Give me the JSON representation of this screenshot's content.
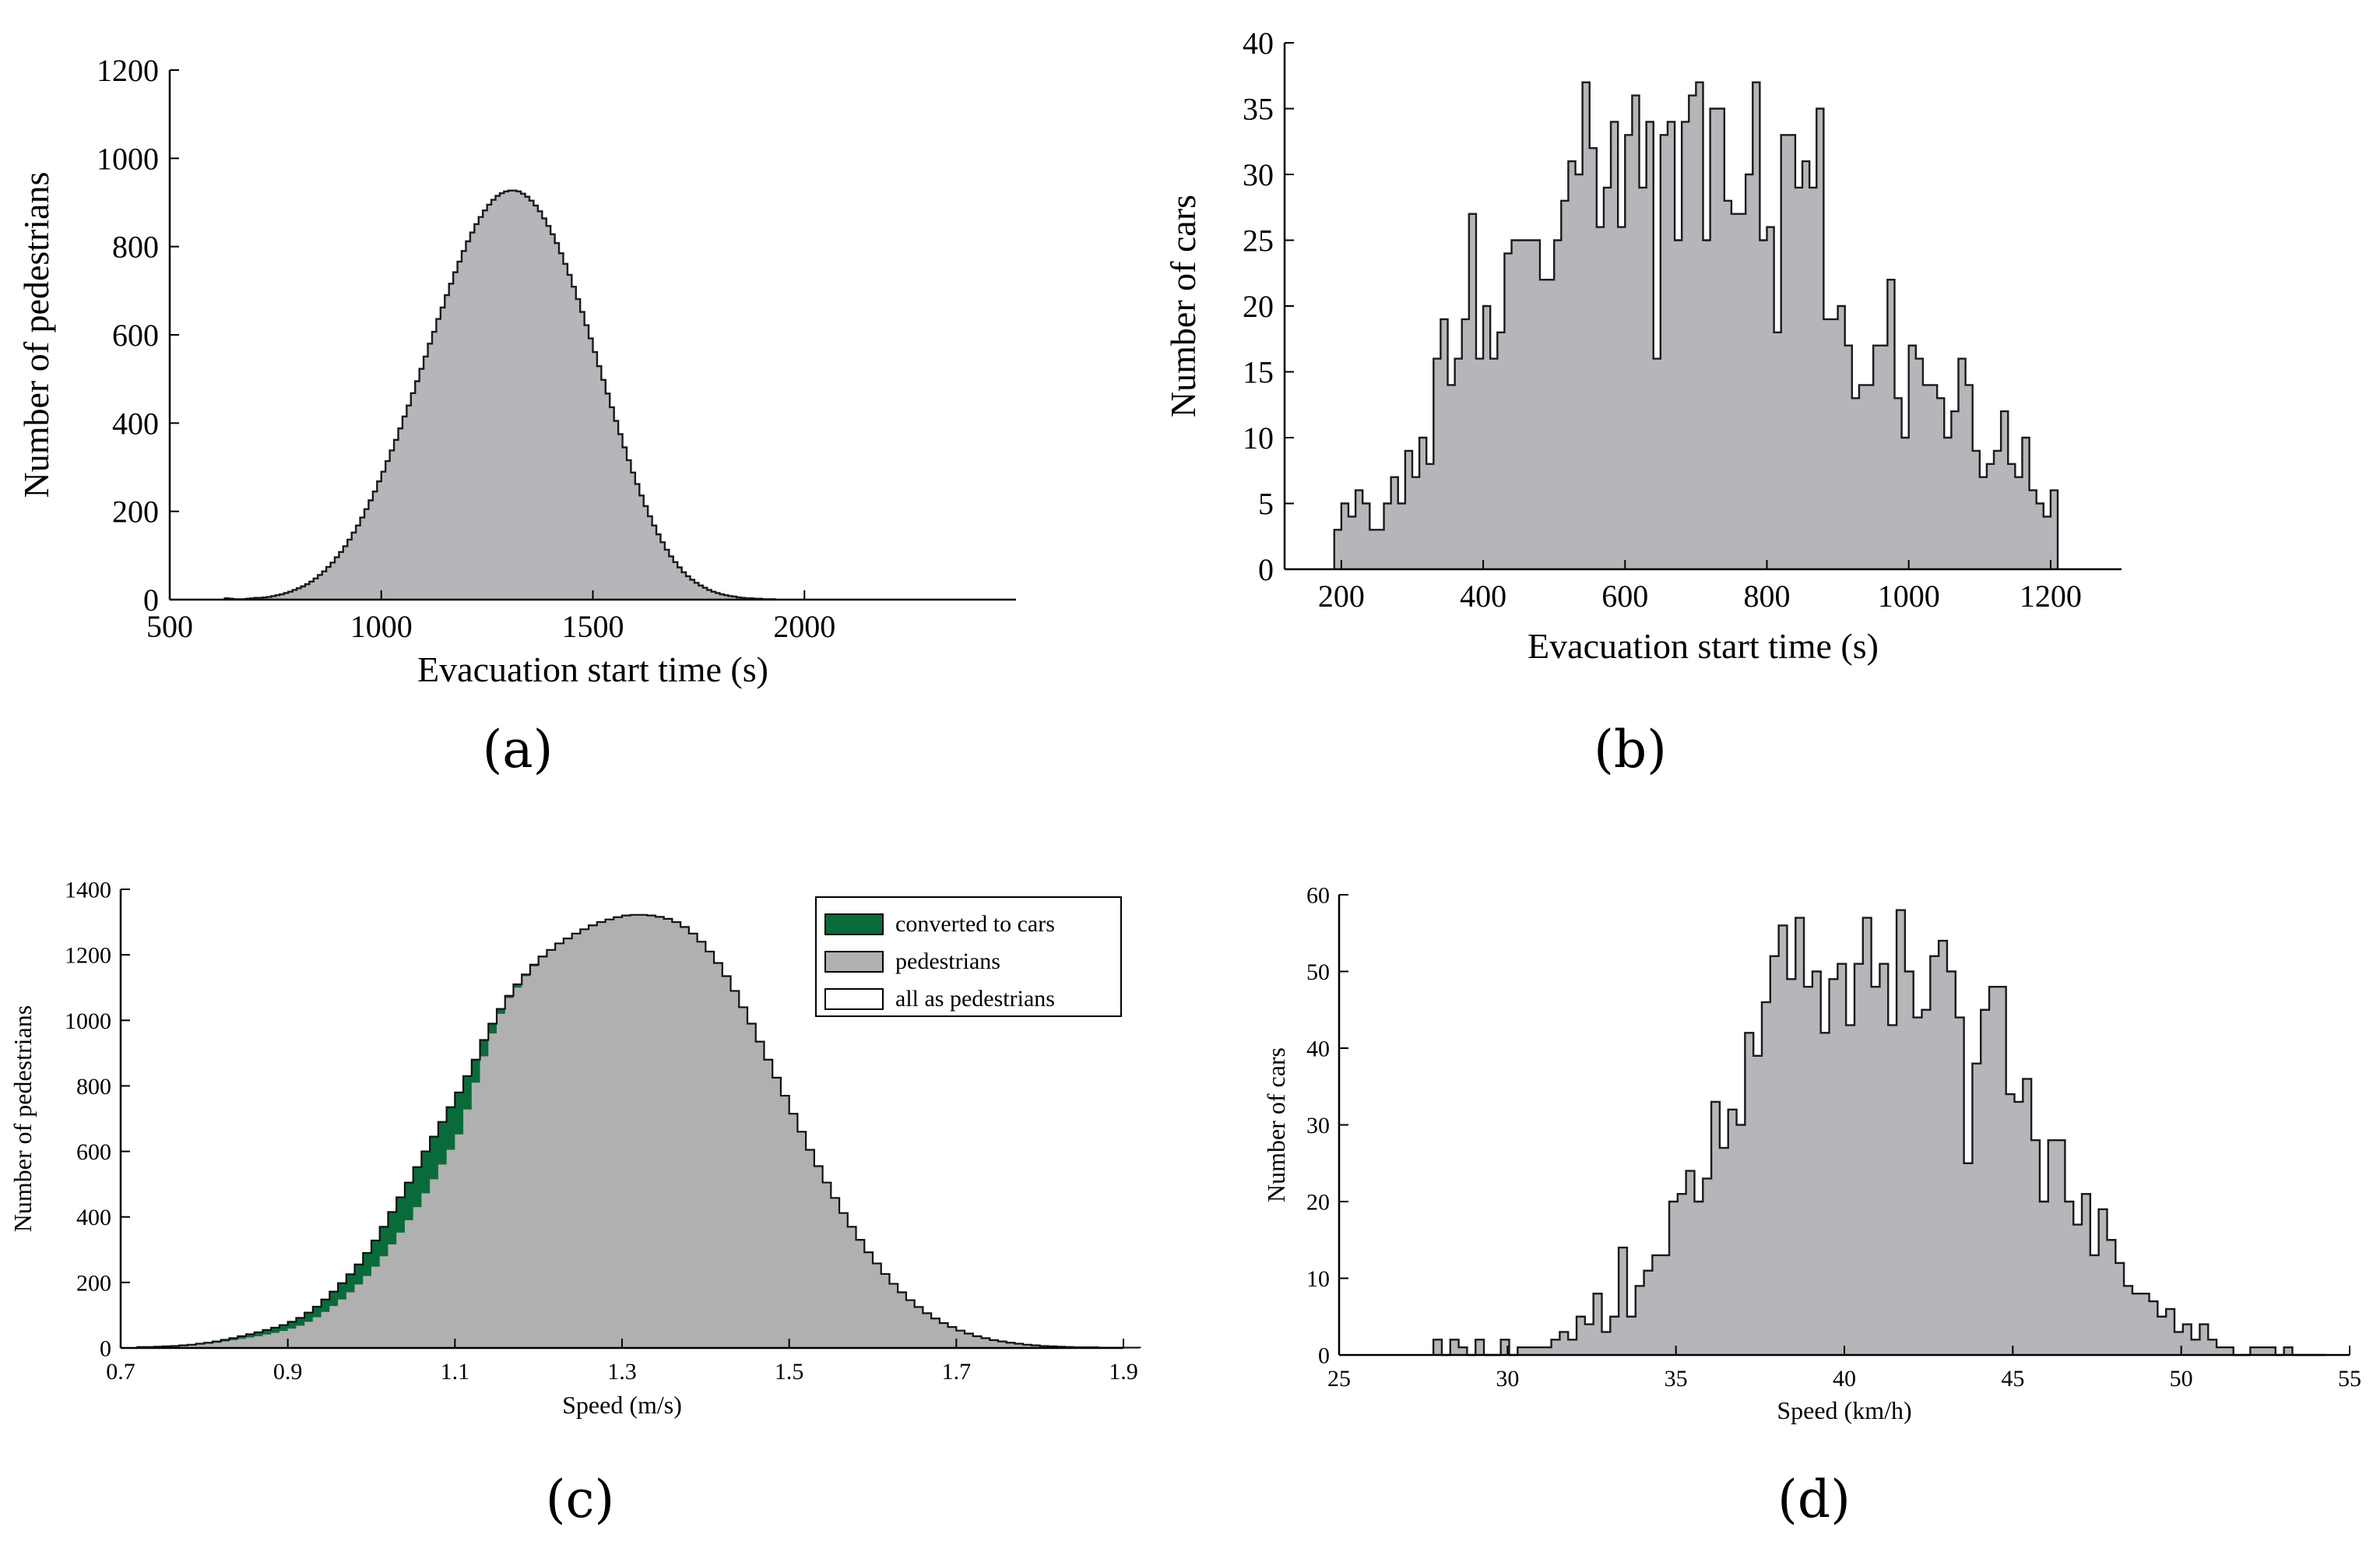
{
  "chart_data": [
    {
      "panel": "(a)",
      "type": "bar",
      "subtype": "histogram",
      "title": "",
      "xlabel": "Evacuation start time (s)",
      "ylabel": "Number of pedestrians",
      "xlim": [
        500,
        2500
      ],
      "ylim": [
        0,
        1200
      ],
      "xticks": [
        500,
        1000,
        1500,
        2000
      ],
      "yticks": [
        0,
        200,
        400,
        600,
        800,
        1000,
        1200
      ],
      "bin_start": 630,
      "bin_width": 10,
      "values": [
        3,
        2,
        1,
        1,
        1,
        2,
        3,
        4,
        4,
        5,
        6,
        8,
        10,
        12,
        15,
        18,
        22,
        26,
        30,
        35,
        41,
        48,
        56,
        64,
        74,
        84,
        96,
        108,
        121,
        136,
        152,
        168,
        186,
        205,
        225,
        245,
        268,
        290,
        314,
        338,
        362,
        388,
        415,
        440,
        468,
        495,
        523,
        551,
        580,
        607,
        636,
        662,
        690,
        716,
        742,
        766,
        790,
        812,
        832,
        851,
        867,
        882,
        895,
        906,
        915,
        921,
        925,
        927,
        927,
        925,
        920,
        913,
        904,
        893,
        880,
        864,
        847,
        828,
        808,
        785,
        761,
        736,
        709,
        681,
        652,
        622,
        592,
        561,
        529,
        498,
        467,
        436,
        405,
        375,
        345,
        316,
        288,
        262,
        236,
        212,
        189,
        168,
        148,
        130,
        113,
        98,
        85,
        73,
        62,
        53,
        45,
        38,
        32,
        27,
        22,
        18,
        15,
        12,
        10,
        8,
        7,
        5,
        4,
        3,
        3,
        2,
        2,
        1,
        1,
        1
      ]
    },
    {
      "panel": "(b)",
      "type": "bar",
      "subtype": "histogram",
      "title": "",
      "xlabel": "Evacuation start time (s)",
      "ylabel": "Number of cars",
      "xlim": [
        120,
        1300
      ],
      "ylim": [
        0,
        40
      ],
      "xticks": [
        200,
        400,
        600,
        800,
        1000,
        1200
      ],
      "yticks": [
        0,
        5,
        10,
        15,
        20,
        25,
        30,
        35,
        40
      ],
      "bin_start": 190,
      "bin_width": 10,
      "values": [
        3,
        5,
        4,
        6,
        5,
        3,
        3,
        5,
        7,
        5,
        9,
        7,
        10,
        8,
        16,
        19,
        14,
        16,
        19,
        27,
        16,
        20,
        16,
        18,
        24,
        25,
        25,
        25,
        25,
        22,
        22,
        25,
        28,
        31,
        30,
        37,
        32,
        26,
        29,
        34,
        26,
        33,
        36,
        29,
        34,
        16,
        33,
        34,
        25,
        34,
        36,
        37,
        25,
        35,
        35,
        28,
        27,
        27,
        30,
        37,
        25,
        26,
        18,
        33,
        33,
        29,
        31,
        29,
        35,
        19,
        19,
        20,
        17,
        13,
        14,
        14,
        17,
        17,
        22,
        13,
        10,
        17,
        16,
        14,
        14,
        13,
        10,
        12,
        16,
        14,
        9,
        7,
        8,
        9,
        12,
        8,
        7,
        10,
        6,
        5,
        4,
        6
      ]
    },
    {
      "panel": "(c)",
      "type": "area",
      "subtype": "step histogram",
      "title": "",
      "xlabel": "Speed (m/s)",
      "ylabel": "Number of pedestrians",
      "xlim": [
        0.7,
        1.9
      ],
      "ylim": [
        0,
        1400
      ],
      "xticks": [
        "0.7",
        "0.9",
        "1.1",
        "1.3",
        "1.5",
        "1.7",
        "1.9"
      ],
      "yticks": [
        0,
        200,
        400,
        600,
        800,
        1000,
        1200,
        1400
      ],
      "bin_start": 0.72,
      "bin_width": 0.01,
      "series": [
        {
          "name": "all as pedestrians",
          "values": [
            3,
            3,
            4,
            5,
            6,
            8,
            10,
            13,
            16,
            20,
            25,
            30,
            36,
            42,
            48,
            55,
            62,
            70,
            80,
            92,
            108,
            126,
            148,
            172,
            198,
            225,
            255,
            290,
            328,
            370,
            415,
            460,
            505,
            552,
            600,
            645,
            690,
            735,
            780,
            830,
            880,
            940,
            990,
            1035,
            1075,
            1110,
            1140,
            1170,
            1195,
            1215,
            1235,
            1250,
            1265,
            1278,
            1290,
            1300,
            1308,
            1315,
            1320,
            1322,
            1322,
            1320,
            1316,
            1310,
            1300,
            1285,
            1265,
            1240,
            1210,
            1175,
            1135,
            1090,
            1040,
            990,
            935,
            880,
            825,
            770,
            715,
            660,
            605,
            555,
            505,
            458,
            412,
            370,
            330,
            292,
            258,
            226,
            196,
            170,
            146,
            125,
            106,
            90,
            76,
            64,
            53,
            44,
            36,
            30,
            24,
            20,
            16,
            13,
            10,
            8,
            6,
            5,
            4,
            3,
            2,
            2,
            2,
            1,
            1,
            1,
            1,
            1
          ]
        },
        {
          "name": "pedestrians",
          "values": [
            3,
            3,
            4,
            5,
            5,
            7,
            8,
            11,
            13,
            16,
            20,
            24,
            28,
            32,
            36,
            41,
            46,
            52,
            59,
            68,
            80,
            94,
            110,
            128,
            148,
            170,
            194,
            220,
            248,
            280,
            316,
            352,
            390,
            430,
            472,
            515,
            560,
            605,
            652,
            728,
            810,
            890,
            960,
            1020,
            1068,
            1100,
            1135,
            1165,
            1192,
            1213,
            1234,
            1250,
            1265,
            1278,
            1290,
            1300,
            1308,
            1315,
            1320,
            1322,
            1322,
            1320,
            1316,
            1310,
            1300,
            1285,
            1265,
            1240,
            1210,
            1175,
            1135,
            1090,
            1040,
            990,
            935,
            880,
            825,
            770,
            715,
            660,
            605,
            555,
            505,
            458,
            412,
            370,
            330,
            292,
            258,
            226,
            196,
            170,
            146,
            125,
            106,
            90,
            76,
            64,
            53,
            44,
            36,
            30,
            24,
            20,
            16,
            13,
            10,
            8,
            6,
            5,
            4,
            3,
            2,
            2,
            2,
            1,
            1,
            1,
            1,
            1
          ]
        }
      ],
      "legend": [
        "converted to cars",
        "pedestrians",
        "all as pedestrians"
      ],
      "legend_position": "top-right",
      "colors": {
        "converted": "#0a6b3a",
        "pedestrians": "#b0b0b0"
      }
    },
    {
      "panel": "(d)",
      "type": "bar",
      "subtype": "histogram",
      "title": "",
      "xlabel": "Speed (km/h)",
      "ylabel": "Number of cars",
      "xlim": [
        25,
        55
      ],
      "ylim": [
        0,
        60
      ],
      "xticks": [
        25,
        30,
        35,
        40,
        45,
        50,
        55
      ],
      "yticks": [
        0,
        10,
        20,
        30,
        40,
        50,
        60
      ],
      "bin_start": 27.8,
      "bin_width": 0.25,
      "values": [
        2,
        0,
        2,
        1,
        0,
        2,
        0,
        0,
        2,
        0,
        1,
        1,
        1,
        1,
        2,
        3,
        2,
        5,
        4,
        8,
        3,
        5,
        14,
        5,
        9,
        11,
        13,
        13,
        20,
        21,
        24,
        20,
        23,
        33,
        27,
        32,
        30,
        42,
        39,
        46,
        52,
        56,
        49,
        57,
        48,
        50,
        42,
        49,
        51,
        43,
        51,
        57,
        48,
        51,
        43,
        58,
        50,
        44,
        45,
        52,
        54,
        50,
        44,
        25,
        38,
        45,
        48,
        48,
        34,
        33,
        36,
        28,
        20,
        28,
        28,
        20,
        17,
        21,
        13,
        19,
        15,
        12,
        9,
        8,
        8,
        7,
        5,
        6,
        3,
        4,
        2,
        4,
        2,
        1,
        1,
        0,
        0,
        1,
        1,
        1,
        0,
        1,
        0,
        0,
        0,
        0
      ]
    }
  ],
  "panel_labels": [
    "(a)",
    "(b)",
    "(c)",
    "(d)"
  ],
  "colors": {
    "bar_fill": "#b4b6b9",
    "bar_edge": "#1a1a1a",
    "tick_label_c_d": "#2a2a6a"
  }
}
